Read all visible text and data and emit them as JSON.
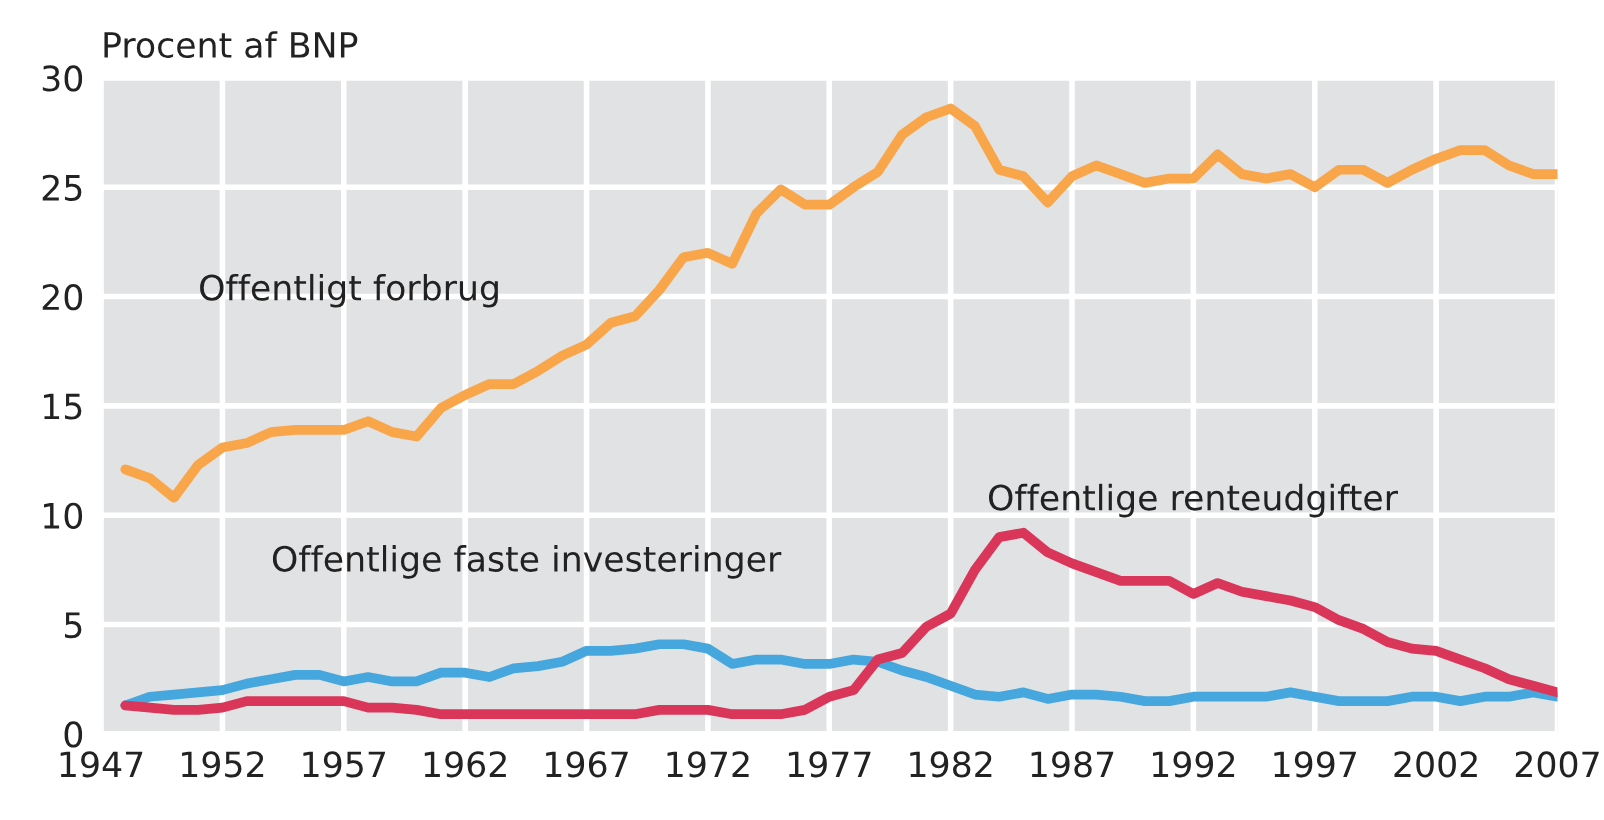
{
  "chart_data": {
    "type": "line",
    "ylabel": "Procent af BNP",
    "x": [
      1948,
      1949,
      1950,
      1951,
      1952,
      1953,
      1954,
      1955,
      1956,
      1957,
      1958,
      1959,
      1960,
      1961,
      1962,
      1963,
      1964,
      1965,
      1966,
      1967,
      1968,
      1969,
      1970,
      1971,
      1972,
      1973,
      1974,
      1975,
      1976,
      1977,
      1978,
      1979,
      1980,
      1981,
      1982,
      1983,
      1984,
      1985,
      1986,
      1987,
      1988,
      1989,
      1990,
      1991,
      1992,
      1993,
      1994,
      1995,
      1996,
      1997,
      1998,
      1999,
      2000,
      2001,
      2002,
      2003,
      2004,
      2005,
      2006,
      2007
    ],
    "series": [
      {
        "name": "Offentligt forbrug",
        "color": "#f9a54a",
        "values": [
          12.1,
          11.7,
          10.8,
          12.3,
          13.1,
          13.3,
          13.8,
          13.9,
          13.9,
          13.9,
          14.3,
          13.8,
          13.6,
          14.9,
          15.5,
          16.0,
          16.0,
          16.6,
          17.3,
          17.8,
          18.8,
          19.1,
          20.3,
          21.8,
          22.0,
          21.5,
          23.8,
          24.9,
          24.2,
          24.2,
          25.0,
          25.7,
          27.4,
          28.2,
          28.6,
          27.8,
          25.8,
          25.5,
          24.3,
          25.5,
          26.0,
          25.6,
          25.2,
          25.4,
          25.4,
          26.5,
          25.6,
          25.4,
          25.6,
          25.0,
          25.8,
          25.8,
          25.2,
          25.8,
          26.3,
          26.7,
          26.7,
          26.0,
          25.6,
          25.6
        ]
      },
      {
        "name": "Offentlige faste investeringer",
        "color": "#46a6de",
        "values": [
          1.3,
          1.7,
          1.8,
          1.9,
          2.0,
          2.3,
          2.5,
          2.7,
          2.7,
          2.4,
          2.6,
          2.4,
          2.4,
          2.8,
          2.8,
          2.6,
          3.0,
          3.1,
          3.3,
          3.8,
          3.8,
          3.9,
          4.1,
          4.1,
          3.9,
          3.2,
          3.4,
          3.4,
          3.2,
          3.2,
          3.4,
          3.3,
          2.9,
          2.6,
          2.2,
          1.8,
          1.7,
          1.9,
          1.6,
          1.8,
          1.8,
          1.7,
          1.5,
          1.5,
          1.7,
          1.7,
          1.7,
          1.7,
          1.9,
          1.7,
          1.5,
          1.5,
          1.5,
          1.7,
          1.7,
          1.5,
          1.7,
          1.7,
          1.9,
          1.7
        ]
      },
      {
        "name": "Offentlige renteudgifter",
        "color": "#d9365a",
        "values": [
          1.3,
          1.2,
          1.1,
          1.1,
          1.2,
          1.5,
          1.5,
          1.5,
          1.5,
          1.5,
          1.2,
          1.2,
          1.1,
          0.9,
          0.9,
          0.9,
          0.9,
          0.9,
          0.9,
          0.9,
          0.9,
          0.9,
          1.1,
          1.1,
          1.1,
          0.9,
          0.9,
          0.9,
          1.1,
          1.7,
          2.0,
          3.4,
          3.7,
          4.9,
          5.5,
          7.5,
          9.0,
          9.2,
          8.3,
          7.8,
          7.4,
          7.0,
          7.0,
          7.0,
          6.4,
          6.9,
          6.5,
          6.3,
          6.1,
          5.8,
          5.2,
          4.8,
          4.2,
          3.9,
          3.8,
          3.4,
          3.0,
          2.5,
          2.2,
          1.9
        ]
      }
    ],
    "xlim": [
      1947,
      2007
    ],
    "xticks": [
      1947,
      1952,
      1957,
      1962,
      1967,
      1972,
      1977,
      1982,
      1987,
      1992,
      1997,
      2002,
      2007
    ],
    "ylim": [
      0,
      30
    ],
    "yticks": [
      0,
      5,
      10,
      15,
      20,
      25,
      30
    ],
    "grid": true,
    "legend": false
  }
}
